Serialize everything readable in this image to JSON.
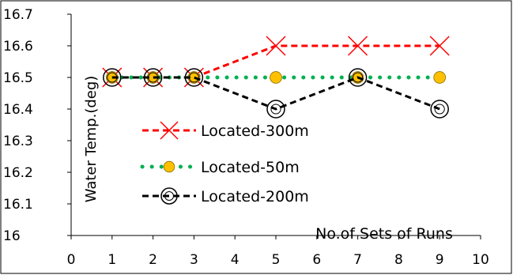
{
  "chart_data": {
    "type": "line",
    "title": "",
    "xlabel": "No.of Sets of Runs",
    "ylabel": "Water Temp.(deg)",
    "xlim": [
      0,
      10
    ],
    "ylim": [
      16,
      16.7
    ],
    "x_ticks": [
      0,
      1,
      2,
      3,
      4,
      5,
      6,
      7,
      8,
      9,
      10
    ],
    "y_ticks": [
      "16",
      "16.1",
      "16.2",
      "16.3",
      "16.4",
      "16.5",
      "16.6",
      "16.7"
    ],
    "grid": false,
    "legend_position": "center-left",
    "series": [
      {
        "name": "Located-300m",
        "color": "#ff0000",
        "marker": "x",
        "line": "dashed",
        "x": [
          1,
          2,
          3,
          5,
          7,
          9
        ],
        "y": [
          16.5,
          16.5,
          16.5,
          16.6,
          16.6,
          16.6
        ]
      },
      {
        "name": "Located-50m",
        "color": "#00b050",
        "marker": "filled-circle",
        "marker_color": "#ffc000",
        "line": "dotted",
        "x": [
          1,
          2,
          3,
          5,
          7,
          9
        ],
        "y": [
          16.5,
          16.5,
          16.5,
          16.5,
          16.5,
          16.5
        ]
      },
      {
        "name": "Located-200m",
        "color": "#000000",
        "marker": "ring",
        "line": "dashed",
        "x": [
          1,
          2,
          3,
          5,
          7,
          9
        ],
        "y": [
          16.5,
          16.5,
          16.5,
          16.4,
          16.5,
          16.4
        ]
      }
    ]
  }
}
